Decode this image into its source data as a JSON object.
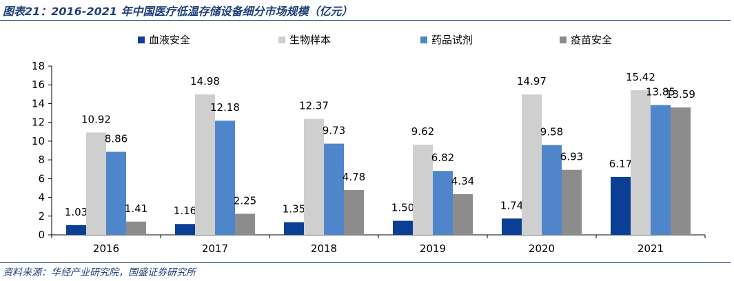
{
  "figure_title": "图表21：2016-2021 年中国医疗低温存储设备细分市场规模（亿元）",
  "source": "资料来源：华经产业研究院，国盛证券研究所",
  "colors": {
    "blood": "#0b3f96",
    "bio": "#cfcfcf",
    "drug": "#4f86cb",
    "vaccine": "#8c8c8c",
    "title": "#1f3f7a"
  },
  "chart_data": {
    "type": "bar",
    "categories": [
      "2016",
      "2017",
      "2018",
      "2019",
      "2020",
      "2021"
    ],
    "series": [
      {
        "name": "血液安全",
        "color": "#0b3f96",
        "values": [
          1.03,
          1.16,
          1.35,
          1.5,
          1.74,
          6.17
        ],
        "labels": [
          "1.03",
          "1.16",
          "1.35",
          "1.50",
          "1.74",
          "6.17"
        ]
      },
      {
        "name": "生物样本",
        "color": "#cfcfcf",
        "values": [
          10.92,
          14.98,
          12.37,
          9.62,
          14.97,
          15.42
        ],
        "labels": [
          "10.92",
          "14.98",
          "12.37",
          "9.62",
          "14.97",
          "15.42"
        ]
      },
      {
        "name": "药品试剂",
        "color": "#4f86cb",
        "values": [
          8.86,
          12.18,
          9.73,
          6.82,
          9.58,
          13.85
        ],
        "labels": [
          "8.86",
          "12.18",
          "9.73",
          "6.82",
          "9.58",
          "13.85"
        ]
      },
      {
        "name": "疫苗安全",
        "color": "#8c8c8c",
        "values": [
          1.41,
          2.25,
          4.78,
          4.34,
          6.93,
          13.59
        ],
        "labels": [
          "1.41",
          "2.25",
          "4.78",
          "4.34",
          "6.93",
          "13.59"
        ]
      }
    ],
    "y_ticks": [
      "0",
      "2",
      "4",
      "6",
      "8",
      "10",
      "12",
      "14",
      "16",
      "18"
    ],
    "ylim": [
      0,
      18
    ],
    "grid": false,
    "legend": "top"
  }
}
